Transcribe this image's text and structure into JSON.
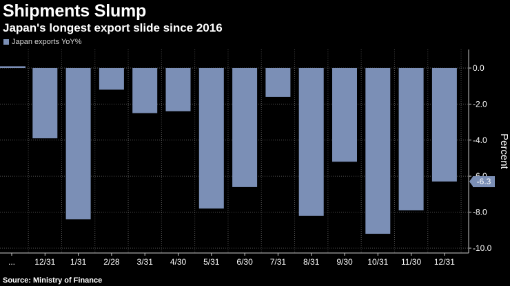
{
  "title": "Shipments Slump",
  "subtitle": "Japan's longest export slide since 2016",
  "source": "Source: Ministry of Finance",
  "colors": {
    "background": "#000000",
    "bar": "#7b8fb6",
    "grid": "#555555",
    "text": "#ffffff",
    "value_label_bg": "#7b8fb6"
  },
  "chart_data": {
    "type": "bar",
    "title": "Shipments Slump",
    "subtitle": "Japan's longest export slide since 2016",
    "xlabel": "",
    "ylabel": "Percent",
    "ylim": [
      -10.0,
      0.0
    ],
    "yticks": [
      "0.0",
      "-2.0",
      "-4.0",
      "-6.0",
      "-8.0",
      "-10.0"
    ],
    "ytick_values": [
      0,
      -2,
      -4,
      -6,
      -8,
      -10
    ],
    "grid": true,
    "legend": "top-left",
    "axis_position": "right",
    "series": [
      {
        "name": "Japan exports YoY%",
        "values": [
          0.1,
          -3.9,
          -8.4,
          -1.2,
          -2.5,
          -2.4,
          -7.8,
          -6.6,
          -1.6,
          -8.2,
          -5.2,
          -9.2,
          -7.9,
          -6.3
        ]
      }
    ],
    "categories": [
      "...",
      "12/31",
      "1/31",
      "2/28",
      "3/31",
      "4/30",
      "5/31",
      "6/30",
      "7/31",
      "8/31",
      "9/30",
      "10/31",
      "11/30",
      "12/31"
    ],
    "last_value_label": "-6.3"
  }
}
